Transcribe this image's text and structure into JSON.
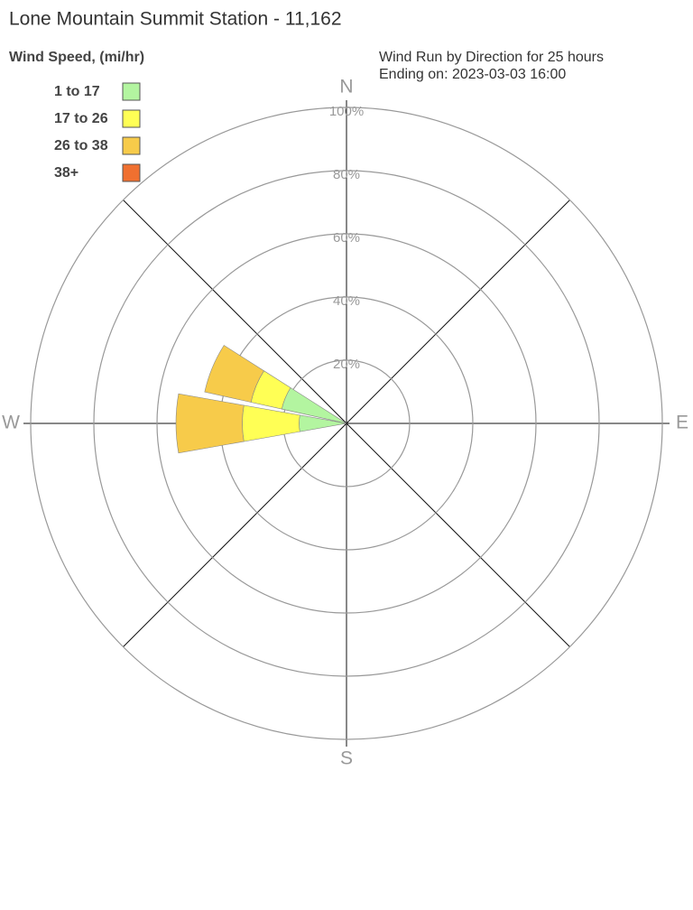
{
  "chart_data": {
    "type": "windrose",
    "title": "Lone Mountain Summit Station - 11,162",
    "legend_title": "Wind Speed, (mi/hr)",
    "subtitle": [
      "Wind Run by Direction for 25 hours",
      "Ending on: 2023-03-03 16:00"
    ],
    "compass": [
      "N",
      "E",
      "S",
      "W"
    ],
    "x": [
      270,
      292.5
    ],
    "series": [
      {
        "name": "1 to 17",
        "color": "#b3f5a0",
        "values": [
          15,
          21
        ]
      },
      {
        "name": "17 to 26",
        "color": "#ffff55",
        "values": [
          18,
          10
        ]
      },
      {
        "name": "26 to 38",
        "color": "#f7cb4a",
        "values": [
          21,
          15
        ]
      },
      {
        "name": "38+",
        "color": "#f07030",
        "values": [
          0,
          0
        ]
      }
    ],
    "rlim": [
      0,
      100
    ],
    "rticks": [
      {
        "value": 20,
        "label": "20%"
      },
      {
        "value": 40,
        "label": "40%"
      },
      {
        "value": 60,
        "label": "60%"
      },
      {
        "value": 80,
        "label": "80%"
      },
      {
        "value": 100,
        "label": "100%"
      }
    ],
    "grid": true
  }
}
